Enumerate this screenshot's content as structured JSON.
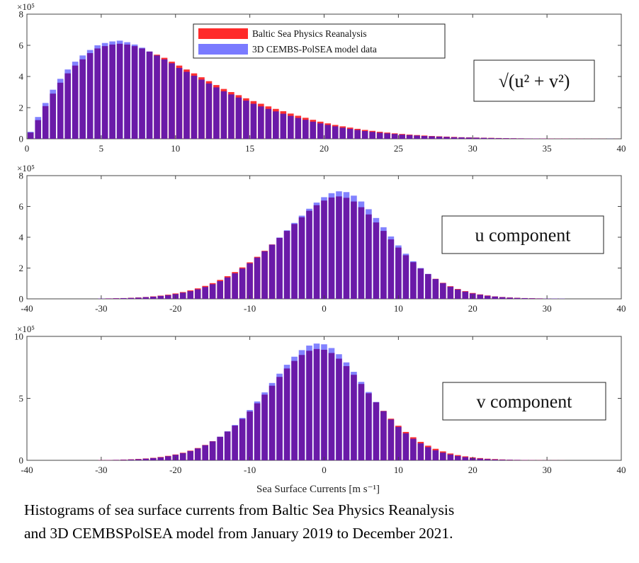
{
  "caption": {
    "line1": "Histograms of sea surface currents from Baltic Sea Physics Reanalysis",
    "line2": "and 3D CEMBSPolSEA model from January 2019 to December 2021."
  },
  "legend": {
    "items": [
      {
        "label": "Baltic Sea Physics Reanalysis",
        "color": "#ff2a2a"
      },
      {
        "label": "3D CEMBS-PolSEA model data",
        "color": "#7a7aff"
      }
    ]
  },
  "colors": {
    "overlap": "#6a1aa8",
    "model": "#8282ff",
    "reanalysis": "#ff3030"
  },
  "chart_data": [
    {
      "type": "bar",
      "panel_label": "√(u² + v²)",
      "y_multiplier": "×10⁵",
      "xlim": [
        0,
        40
      ],
      "ylim": [
        0,
        8
      ],
      "xticks": [
        0,
        5,
        10,
        15,
        20,
        25,
        30,
        35,
        40
      ],
      "yticks": [
        0,
        2,
        4,
        6,
        8
      ],
      "bin_width": 0.5,
      "series": [
        {
          "name": "Baltic Sea Physics Reanalysis",
          "x": [
            0,
            0.5,
            1,
            1.5,
            2,
            2.5,
            3,
            3.5,
            4,
            4.5,
            5,
            5.5,
            6,
            6.5,
            7,
            7.5,
            8,
            8.5,
            9,
            9.5,
            10,
            10.5,
            11,
            11.5,
            12,
            12.5,
            13,
            13.5,
            14,
            14.5,
            15,
            15.5,
            16,
            16.5,
            17,
            17.5,
            18,
            18.5,
            19,
            19.5,
            20,
            20.5,
            21,
            21.5,
            22,
            22.5,
            23,
            23.5,
            24,
            24.5,
            25,
            25.5,
            26,
            26.5,
            27,
            27.5,
            28,
            28.5,
            29,
            29.5,
            30,
            30.5,
            31,
            31.5,
            32,
            32.5,
            33,
            33.5,
            34,
            34.5,
            35,
            35.5,
            36,
            36.5,
            37,
            37.5,
            38,
            38.5,
            39,
            39.5
          ],
          "values": [
            0.4,
            1.2,
            2.1,
            2.9,
            3.6,
            4.2,
            4.7,
            5.1,
            5.5,
            5.8,
            5.95,
            6.05,
            6.1,
            6.05,
            5.95,
            5.8,
            5.6,
            5.4,
            5.2,
            4.95,
            4.7,
            4.45,
            4.2,
            3.95,
            3.7,
            3.45,
            3.2,
            3.0,
            2.8,
            2.6,
            2.42,
            2.25,
            2.08,
            1.92,
            1.77,
            1.62,
            1.48,
            1.35,
            1.22,
            1.1,
            0.99,
            0.89,
            0.8,
            0.72,
            0.64,
            0.57,
            0.51,
            0.45,
            0.4,
            0.35,
            0.31,
            0.27,
            0.24,
            0.21,
            0.18,
            0.16,
            0.14,
            0.12,
            0.1,
            0.09,
            0.08,
            0.07,
            0.06,
            0.05,
            0.04,
            0.035,
            0.03,
            0.025,
            0.02,
            0.018,
            0.015,
            0.012,
            0.01,
            0.009,
            0.008,
            0.007,
            0.006,
            0.005,
            0.004,
            0.004
          ]
        },
        {
          "name": "3D CEMBS-PolSEA model data",
          "x": [
            0,
            0.5,
            1,
            1.5,
            2,
            2.5,
            3,
            3.5,
            4,
            4.5,
            5,
            5.5,
            6,
            6.5,
            7,
            7.5,
            8,
            8.5,
            9,
            9.5,
            10,
            10.5,
            11,
            11.5,
            12,
            12.5,
            13,
            13.5,
            14,
            14.5,
            15,
            15.5,
            16,
            16.5,
            17,
            17.5,
            18,
            18.5,
            19,
            19.5,
            20,
            20.5,
            21,
            21.5,
            22,
            22.5,
            23,
            23.5,
            24,
            24.5,
            25,
            25.5,
            26,
            26.5,
            27,
            27.5,
            28,
            28.5,
            29,
            29.5,
            30,
            30.5,
            31,
            31.5,
            32,
            32.5,
            33,
            33.5,
            34,
            34.5,
            35,
            35.5,
            36,
            36.5,
            37,
            37.5,
            38,
            38.5,
            39,
            39.5
          ],
          "values": [
            0.45,
            1.4,
            2.3,
            3.15,
            3.85,
            4.45,
            4.95,
            5.35,
            5.7,
            6.0,
            6.15,
            6.25,
            6.3,
            6.2,
            6.05,
            5.85,
            5.6,
            5.35,
            5.1,
            4.85,
            4.55,
            4.3,
            4.05,
            3.8,
            3.55,
            3.3,
            3.05,
            2.85,
            2.65,
            2.45,
            2.25,
            2.08,
            1.92,
            1.76,
            1.61,
            1.47,
            1.34,
            1.22,
            1.1,
            0.99,
            0.89,
            0.8,
            0.71,
            0.64,
            0.57,
            0.5,
            0.45,
            0.39,
            0.35,
            0.31,
            0.27,
            0.24,
            0.21,
            0.18,
            0.16,
            0.14,
            0.12,
            0.1,
            0.09,
            0.08,
            0.07,
            0.06,
            0.05,
            0.04,
            0.035,
            0.03,
            0.025,
            0.02,
            0.018,
            0.015,
            0.012,
            0.01,
            0.009,
            0.008,
            0.007,
            0.006,
            0.005,
            0.004,
            0.004,
            0.003
          ]
        }
      ]
    },
    {
      "type": "bar",
      "panel_label": "u component",
      "y_multiplier": "×10⁵",
      "xlim": [
        -40,
        40
      ],
      "ylim": [
        0,
        8
      ],
      "xticks": [
        -40,
        -30,
        -20,
        -10,
        0,
        10,
        20,
        30,
        40
      ],
      "yticks": [
        0,
        2,
        4,
        6,
        8
      ],
      "bin_width": 1,
      "series": [
        {
          "name": "Baltic Sea Physics Reanalysis",
          "x": [
            -30,
            -29,
            -28,
            -27,
            -26,
            -25,
            -24,
            -23,
            -22,
            -21,
            -20,
            -19,
            -18,
            -17,
            -16,
            -15,
            -14,
            -13,
            -12,
            -11,
            -10,
            -9,
            -8,
            -7,
            -6,
            -5,
            -4,
            -3,
            -2,
            -1,
            0,
            1,
            2,
            3,
            4,
            5,
            6,
            7,
            8,
            9,
            10,
            11,
            12,
            13,
            14,
            15,
            16,
            17,
            18,
            19,
            20,
            21,
            22,
            23,
            24,
            25,
            26,
            27,
            28,
            29,
            30,
            31,
            32
          ],
          "values": [
            0.02,
            0.03,
            0.04,
            0.05,
            0.07,
            0.09,
            0.12,
            0.16,
            0.21,
            0.27,
            0.35,
            0.44,
            0.55,
            0.68,
            0.84,
            1.02,
            1.23,
            1.47,
            1.74,
            2.04,
            2.37,
            2.73,
            3.12,
            3.53,
            3.96,
            4.41,
            4.86,
            5.3,
            5.72,
            6.08,
            6.38,
            6.58,
            6.65,
            6.56,
            6.32,
            5.95,
            5.48,
            4.96,
            4.41,
            3.86,
            3.33,
            2.83,
            2.38,
            1.97,
            1.61,
            1.3,
            1.04,
            0.82,
            0.64,
            0.5,
            0.38,
            0.29,
            0.22,
            0.16,
            0.12,
            0.09,
            0.07,
            0.05,
            0.04,
            0.03,
            0.02,
            0.015,
            0.01
          ]
        },
        {
          "name": "3D CEMBS-PolSEA model data",
          "x": [
            -30,
            -29,
            -28,
            -27,
            -26,
            -25,
            -24,
            -23,
            -22,
            -21,
            -20,
            -19,
            -18,
            -17,
            -16,
            -15,
            -14,
            -13,
            -12,
            -11,
            -10,
            -9,
            -8,
            -7,
            -6,
            -5,
            -4,
            -3,
            -2,
            -1,
            0,
            1,
            2,
            3,
            4,
            5,
            6,
            7,
            8,
            9,
            10,
            11,
            12,
            13,
            14,
            15,
            16,
            17,
            18,
            19,
            20,
            21,
            22,
            23,
            24,
            25,
            26,
            27,
            28,
            29,
            30,
            31,
            32
          ],
          "values": [
            0.02,
            0.025,
            0.035,
            0.045,
            0.06,
            0.08,
            0.11,
            0.14,
            0.19,
            0.24,
            0.31,
            0.4,
            0.5,
            0.62,
            0.77,
            0.95,
            1.15,
            1.39,
            1.66,
            1.97,
            2.31,
            2.68,
            3.09,
            3.52,
            3.98,
            4.45,
            4.93,
            5.4,
            5.85,
            6.25,
            6.6,
            6.86,
            6.98,
            6.93,
            6.7,
            6.32,
            5.82,
            5.25,
            4.65,
            4.05,
            3.47,
            2.93,
            2.44,
            2.0,
            1.62,
            1.29,
            1.02,
            0.79,
            0.61,
            0.47,
            0.35,
            0.27,
            0.2,
            0.15,
            0.11,
            0.08,
            0.06,
            0.045,
            0.035,
            0.025,
            0.02,
            0.015,
            0.01
          ]
        }
      ]
    },
    {
      "type": "bar",
      "panel_label": "v component",
      "y_multiplier": "×10⁵",
      "xlim": [
        -40,
        40
      ],
      "ylim": [
        0,
        10
      ],
      "xticks": [
        -40,
        -30,
        -20,
        -10,
        0,
        10,
        20,
        30,
        40
      ],
      "yticks": [
        0,
        5,
        10
      ],
      "bin_width": 1,
      "series": [
        {
          "name": "Baltic Sea Physics Reanalysis",
          "x": [
            -30,
            -29,
            -28,
            -27,
            -26,
            -25,
            -24,
            -23,
            -22,
            -21,
            -20,
            -19,
            -18,
            -17,
            -16,
            -15,
            -14,
            -13,
            -12,
            -11,
            -10,
            -9,
            -8,
            -7,
            -6,
            -5,
            -4,
            -3,
            -2,
            -1,
            0,
            1,
            2,
            3,
            4,
            5,
            6,
            7,
            8,
            9,
            10,
            11,
            12,
            13,
            14,
            15,
            16,
            17,
            18,
            19,
            20,
            21,
            22,
            23,
            24,
            25,
            26,
            27,
            28,
            29,
            30,
            31,
            32
          ],
          "values": [
            0.02,
            0.03,
            0.04,
            0.06,
            0.08,
            0.11,
            0.15,
            0.2,
            0.27,
            0.36,
            0.47,
            0.61,
            0.78,
            0.99,
            1.24,
            1.54,
            1.9,
            2.32,
            2.8,
            3.34,
            3.94,
            4.6,
            5.3,
            6.02,
            6.73,
            7.41,
            8.02,
            8.5,
            8.84,
            8.98,
            8.92,
            8.66,
            8.2,
            7.6,
            6.9,
            6.16,
            5.41,
            4.68,
            3.99,
            3.36,
            2.79,
            2.29,
            1.86,
            1.49,
            1.18,
            0.93,
            0.72,
            0.55,
            0.42,
            0.32,
            0.24,
            0.18,
            0.13,
            0.1,
            0.07,
            0.05,
            0.04,
            0.03,
            0.02,
            0.015,
            0.01,
            0.008,
            0.006
          ]
        },
        {
          "name": "3D CEMBS-PolSEA model data",
          "x": [
            -30,
            -29,
            -28,
            -27,
            -26,
            -25,
            -24,
            -23,
            -22,
            -21,
            -20,
            -19,
            -18,
            -17,
            -16,
            -15,
            -14,
            -13,
            -12,
            -11,
            -10,
            -9,
            -8,
            -7,
            -6,
            -5,
            -4,
            -3,
            -2,
            -1,
            0,
            1,
            2,
            3,
            4,
            5,
            6,
            7,
            8,
            9,
            10,
            11,
            12,
            13,
            14,
            15,
            16,
            17,
            18,
            19,
            20,
            21,
            22,
            23,
            24,
            25,
            26,
            27,
            28,
            29,
            30,
            31,
            32
          ],
          "values": [
            0.015,
            0.02,
            0.03,
            0.045,
            0.065,
            0.09,
            0.13,
            0.18,
            0.24,
            0.33,
            0.44,
            0.58,
            0.75,
            0.96,
            1.22,
            1.53,
            1.9,
            2.34,
            2.85,
            3.42,
            4.06,
            4.75,
            5.48,
            6.24,
            6.99,
            7.71,
            8.36,
            8.89,
            9.26,
            9.42,
            9.36,
            9.06,
            8.56,
            7.9,
            7.14,
            6.33,
            5.51,
            4.71,
            3.97,
            3.3,
            2.7,
            2.18,
            1.74,
            1.37,
            1.06,
            0.81,
            0.62,
            0.47,
            0.35,
            0.26,
            0.19,
            0.14,
            0.1,
            0.07,
            0.05,
            0.04,
            0.03,
            0.02,
            0.015,
            0.01,
            0.008,
            0.006,
            0.004
          ]
        }
      ]
    }
  ],
  "xlabel": "Sea Surface Currents [m s⁻¹]"
}
